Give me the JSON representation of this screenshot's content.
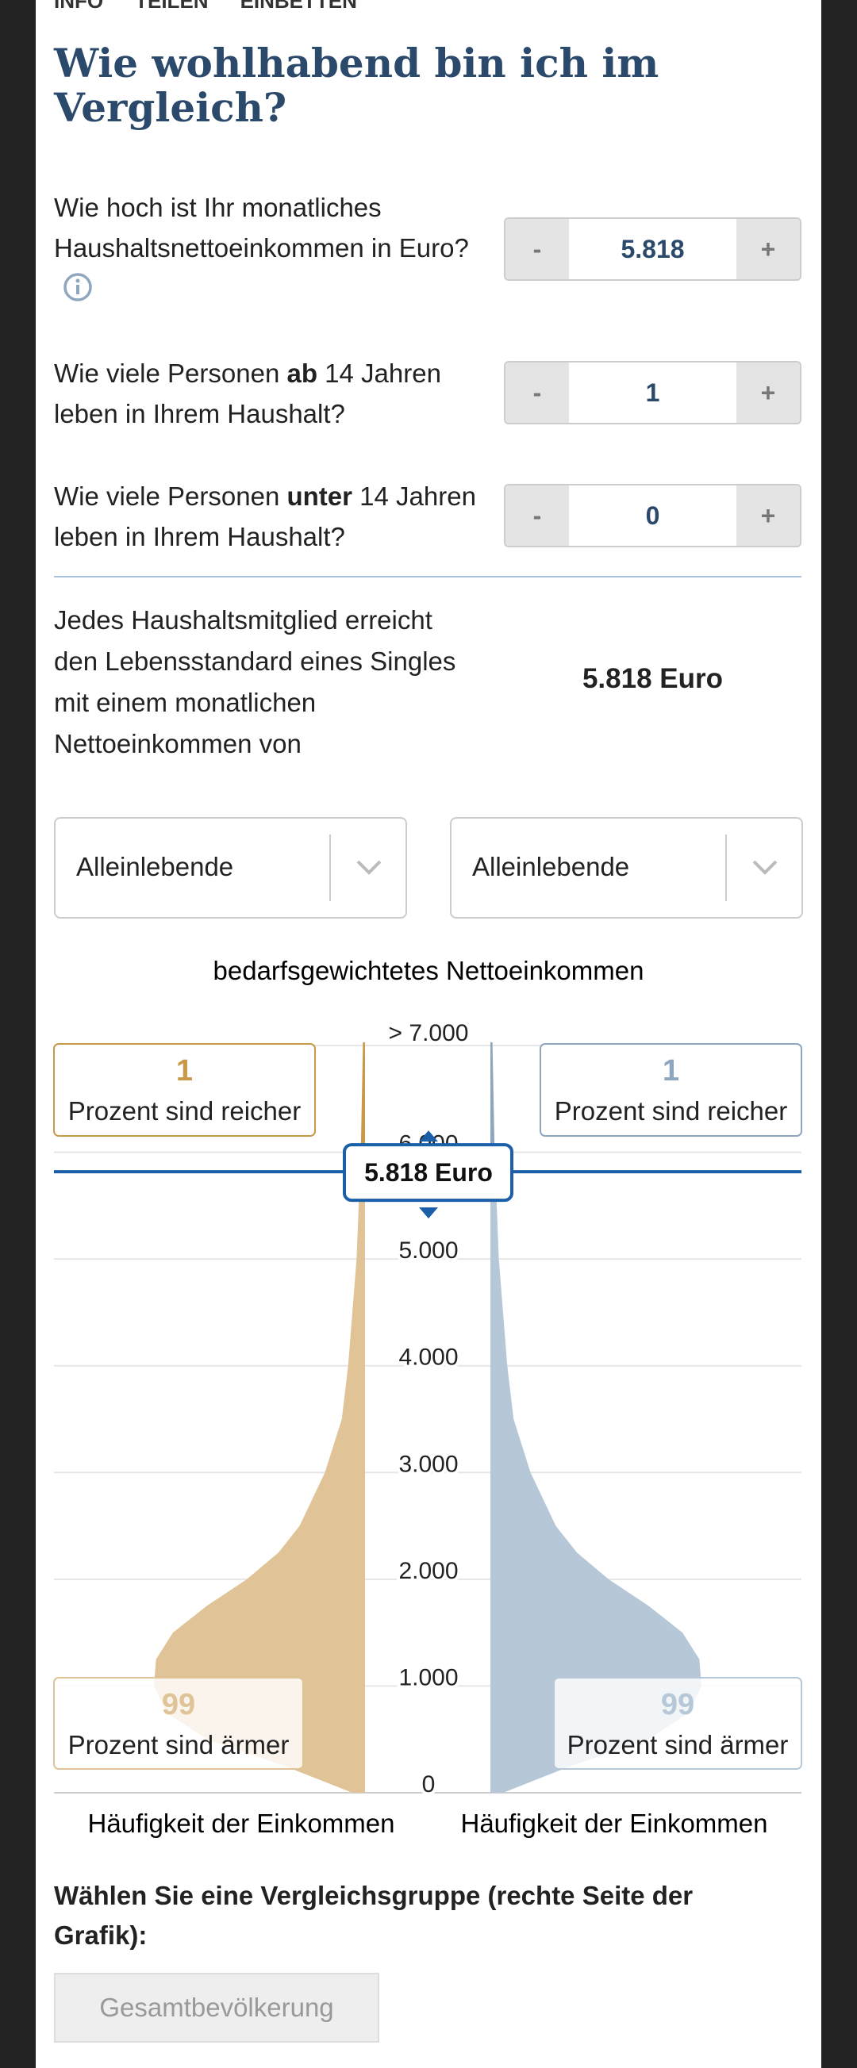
{
  "nav": [
    "INFO",
    "TEILEN",
    "EINBETTEN"
  ],
  "title": "Wie wohlhabend bin ich im Vergleich?",
  "questions": [
    {
      "parts": [
        "Wie hoch ist Ihr monatliches Haushaltsnettoeinkommen in Euro?"
      ],
      "value": "5.818",
      "minus": "-",
      "plus": "+"
    },
    {
      "parts": [
        "Wie viele Personen ",
        "ab",
        " 14 Jahren leben in Ihrem Haushalt?"
      ],
      "value": "1",
      "minus": "-",
      "plus": "+"
    },
    {
      "parts": [
        "Wie viele Personen ",
        "unter",
        " 14 Jahren leben in Ihrem Haushalt?"
      ],
      "value": "0",
      "minus": "-",
      "plus": "+"
    }
  ],
  "result": {
    "text": "Jedes Haushaltsmitglied erreicht den Lebensstandard eines Singles mit einem monatlichen Nettoeinkommen von",
    "value": "5.818 Euro"
  },
  "dropdowns": [
    "Alleinlebende",
    "Alleinlebende"
  ],
  "chart_data": {
    "type": "violin",
    "title": "bedarfsgewichtetes Nettoeinkommen",
    "ylim": [
      0,
      7000
    ],
    "yticks": [
      0,
      {
        "value": 1000,
        "label": "1.000"
      },
      {
        "value": 2000,
        "label": "2.000"
      },
      {
        "value": 3000,
        "label": "3.000"
      },
      {
        "value": 4000,
        "label": "4.000"
      },
      {
        "value": 5000,
        "label": "5.000"
      },
      {
        "value": 6000,
        "label": "6.000"
      },
      {
        "value": 7000,
        "label": "> 7.000"
      }
    ],
    "x": [
      0,
      250,
      500,
      750,
      1000,
      1250,
      1500,
      1750,
      2000,
      2250,
      2500,
      3000,
      3500,
      4000,
      5000,
      6000,
      7000
    ],
    "series": [
      {
        "name": "Alleinlebende",
        "color": "#e0c497",
        "color_above": "#c9994a",
        "values": [
          6,
          38,
          75,
          94,
          100,
          99,
          91,
          75,
          56,
          41,
          31,
          19,
          11,
          8,
          4,
          2,
          1
        ]
      },
      {
        "name": "Alleinlebende",
        "color": "#b6c8d8",
        "color_above": "#8fa6bf",
        "values": [
          6,
          38,
          75,
          94,
          100,
          99,
          91,
          75,
          56,
          41,
          31,
          19,
          11,
          8,
          4,
          2,
          1
        ]
      }
    ],
    "marker": {
      "value": 5818,
      "label": "5.818 Euro",
      "color": "#1a5fa8"
    },
    "richer": [
      {
        "value": 1,
        "text": "Prozent sind reicher"
      },
      {
        "value": 1,
        "text": "Prozent sind reicher"
      }
    ],
    "poorer": [
      {
        "value": 99,
        "text": "Prozent sind ärmer"
      },
      {
        "value": 99,
        "text": "Prozent sind ärmer"
      }
    ],
    "xlabels": [
      "Häufigkeit der Einkommen",
      "Häufigkeit der Einkommen"
    ]
  },
  "group": {
    "heading": "Wählen Sie eine Vergleichsgruppe (rechte Seite der Grafik):",
    "button": "Gesamtbevölkerung"
  }
}
